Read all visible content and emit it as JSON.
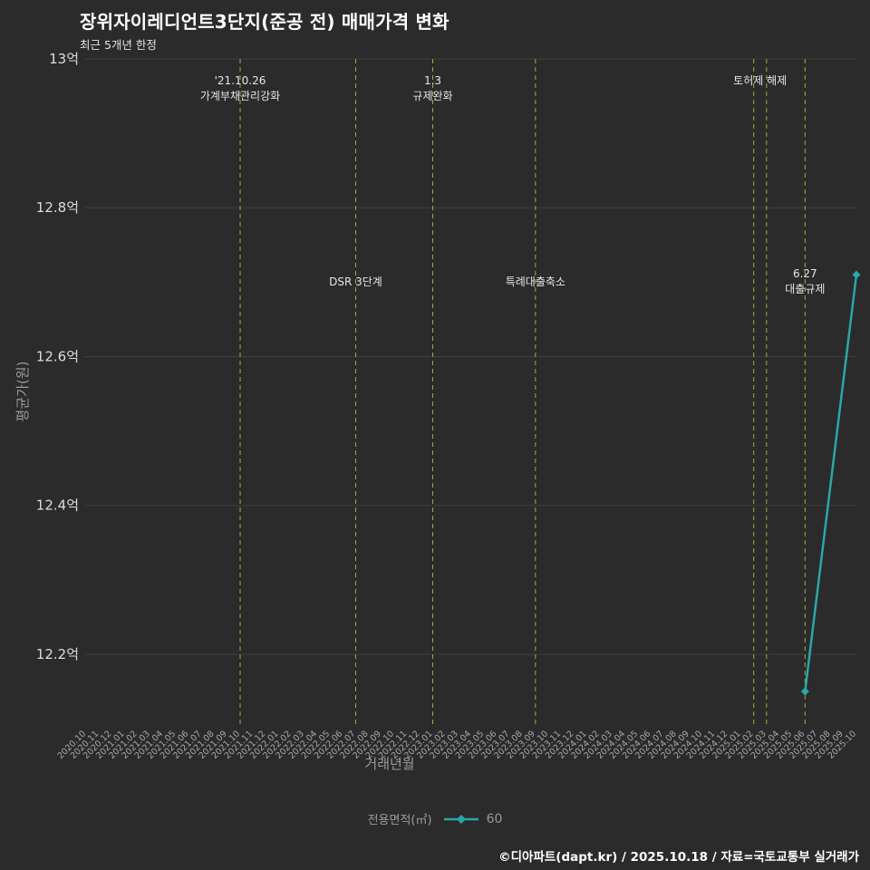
{
  "header": {
    "title": "장위자이레디언트3단지(준공 전) 매매가격 변화",
    "subtitle": "최근 5개년 한정"
  },
  "legend": {
    "title": "전용면적(㎡)",
    "series_label": "60"
  },
  "footer": {
    "credit": "©디아파트(dapt.kr) / 2025.10.18 / 자료=국토교통부 실거래가"
  },
  "chart_data": {
    "type": "line",
    "title": "장위자이레디언트3단지(준공 전) 매매가격 변화",
    "xlabel": "거래년월",
    "ylabel": "평균가(원)",
    "ylim": [
      12.105,
      13.0
    ],
    "grid": true,
    "x_categories": [
      "2020.10",
      "2020.11",
      "2020.12",
      "2021.01",
      "2021.02",
      "2021.03",
      "2021.04",
      "2021.05",
      "2021.06",
      "2021.07",
      "2021.08",
      "2021.09",
      "2021.10",
      "2021.11",
      "2021.12",
      "2022.01",
      "2022.02",
      "2022.03",
      "2022.04",
      "2022.05",
      "2022.06",
      "2022.07",
      "2022.08",
      "2022.09",
      "2022.10",
      "2022.11",
      "2022.12",
      "2023.01",
      "2023.02",
      "2023.03",
      "2023.04",
      "2023.05",
      "2023.06",
      "2023.07",
      "2023.08",
      "2023.09",
      "2023.10",
      "2023.11",
      "2023.12",
      "2024.01",
      "2024.02",
      "2024.03",
      "2024.04",
      "2024.05",
      "2024.06",
      "2024.07",
      "2024.08",
      "2024.09",
      "2024.10",
      "2024.11",
      "2024.12",
      "2025.01",
      "2025.02",
      "2025.03",
      "2025.04",
      "2025.05",
      "2025.06",
      "2025.07",
      "2025.08",
      "2025.09",
      "2025.10"
    ],
    "y_ticks": [
      {
        "value": 13.0,
        "label": "13억"
      },
      {
        "value": 12.8,
        "label": "12.8억"
      },
      {
        "value": 12.6,
        "label": "12.6억"
      },
      {
        "value": 12.4,
        "label": "12.4억"
      },
      {
        "value": 12.2,
        "label": "12.2억"
      }
    ],
    "series": [
      {
        "name": "60",
        "color": "#2ba7a7",
        "points": [
          {
            "x": "2025.06",
            "y": 12.15
          },
          {
            "x": "2025.10",
            "y": 12.71
          }
        ]
      }
    ],
    "events": [
      {
        "x": "2021.10",
        "label_lines": [
          "'21.10.26",
          "가계부채관리강화"
        ],
        "label_pos": "top"
      },
      {
        "x": "2022.07",
        "label_lines": [
          "DSR 3단계"
        ],
        "label_pos": "mid"
      },
      {
        "x": "2023.01",
        "label_lines": [
          "1.3",
          "규제완화"
        ],
        "label_pos": "top"
      },
      {
        "x": "2023.09",
        "label_lines": [
          "특례대출축소"
        ],
        "label_pos": "mid"
      },
      {
        "x": "2025.02",
        "label_lines": [
          "토허제 해제"
        ],
        "label_pos": "top",
        "label_dx": 7
      },
      {
        "x": "2025.03",
        "label_lines": [],
        "label_pos": "top"
      },
      {
        "x": "2025.06",
        "label_lines": [
          "6.27",
          "대출규제"
        ],
        "label_pos": "mid"
      }
    ],
    "colors": {
      "background": "#2b2b2b",
      "grid": "#3e3e3e",
      "event_line": "#a8a83e",
      "event_text": "#e6e6e6",
      "y_tick_text": "#dcdcdc",
      "x_tick_text": "#a8a8a8",
      "axis_title_text": "#9a9a9a"
    }
  }
}
